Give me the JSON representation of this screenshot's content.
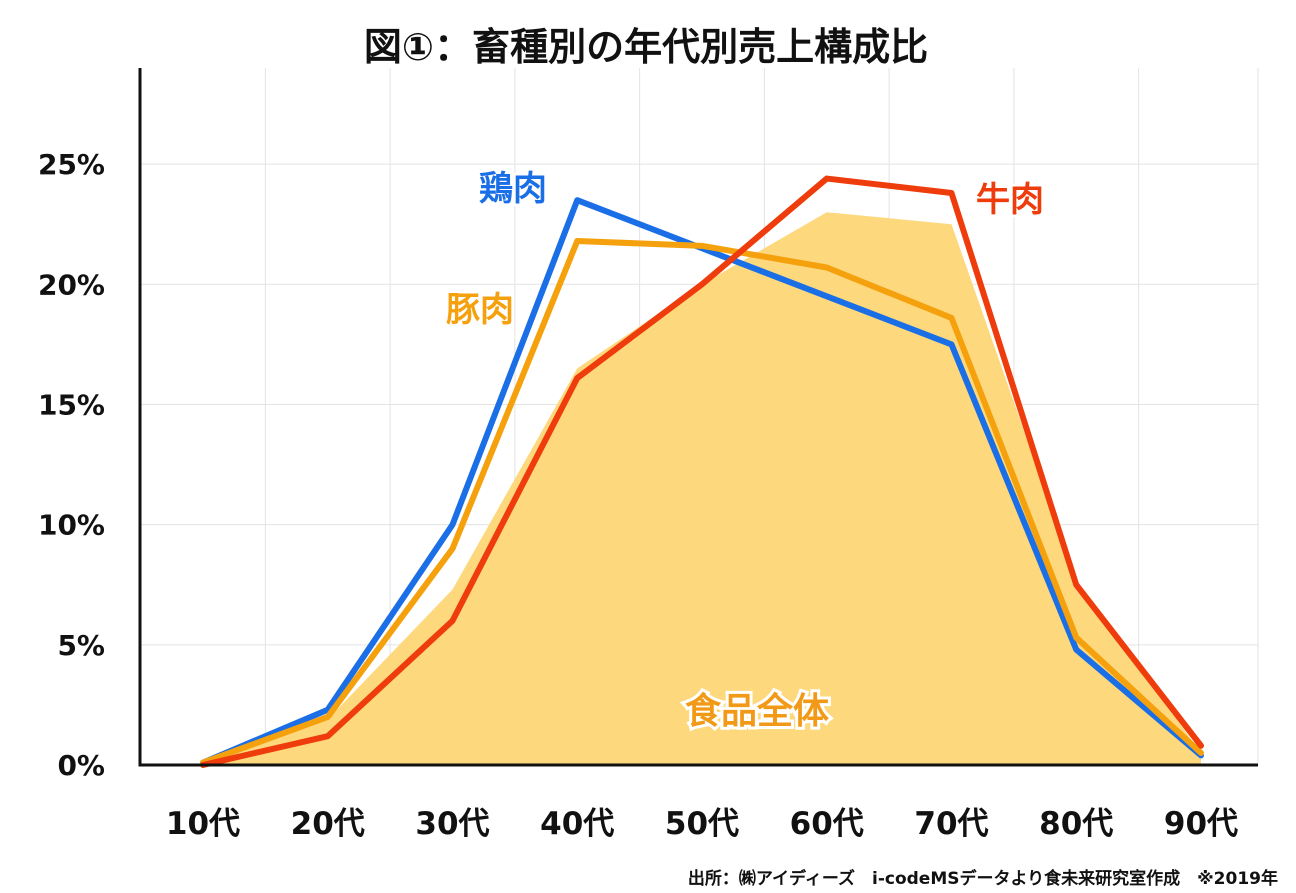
{
  "chart_data": {
    "type": "line",
    "title": "図①：畜種別の年代別売上構成比",
    "categories": [
      "10代",
      "20代",
      "30代",
      "40代",
      "50代",
      "60代",
      "70代",
      "80代",
      "90代"
    ],
    "y_ticks": [
      0,
      5,
      10,
      15,
      20,
      25
    ],
    "y_tick_labels": [
      "0%",
      "5%",
      "10%",
      "15%",
      "20%",
      "25%"
    ],
    "ylim": [
      0,
      29
    ],
    "grid": true,
    "area_series": {
      "name": "食品全体",
      "color": "#fdd87c",
      "label_color": "#f29a18",
      "values": [
        0.1,
        1.9,
        7.3,
        16.5,
        20.0,
        23.0,
        22.5,
        7.7,
        0.5
      ]
    },
    "series": [
      {
        "name": "鶏肉",
        "color": "#1a6ee6",
        "values": [
          0.1,
          2.3,
          10.0,
          23.5,
          21.5,
          19.5,
          17.5,
          4.8,
          0.4
        ]
      },
      {
        "name": "豚肉",
        "color": "#f5a10d",
        "values": [
          0.1,
          2.0,
          9.0,
          21.8,
          21.6,
          20.7,
          18.6,
          5.3,
          0.5
        ]
      },
      {
        "name": "牛肉",
        "color": "#ef3c0c",
        "values": [
          0.0,
          1.2,
          6.0,
          16.1,
          20.0,
          24.4,
          23.8,
          7.5,
          0.8
        ]
      }
    ],
    "source": "出所：㈱アイディーズ　i-codeMSデータより食未来研究室作成　※2019年"
  }
}
